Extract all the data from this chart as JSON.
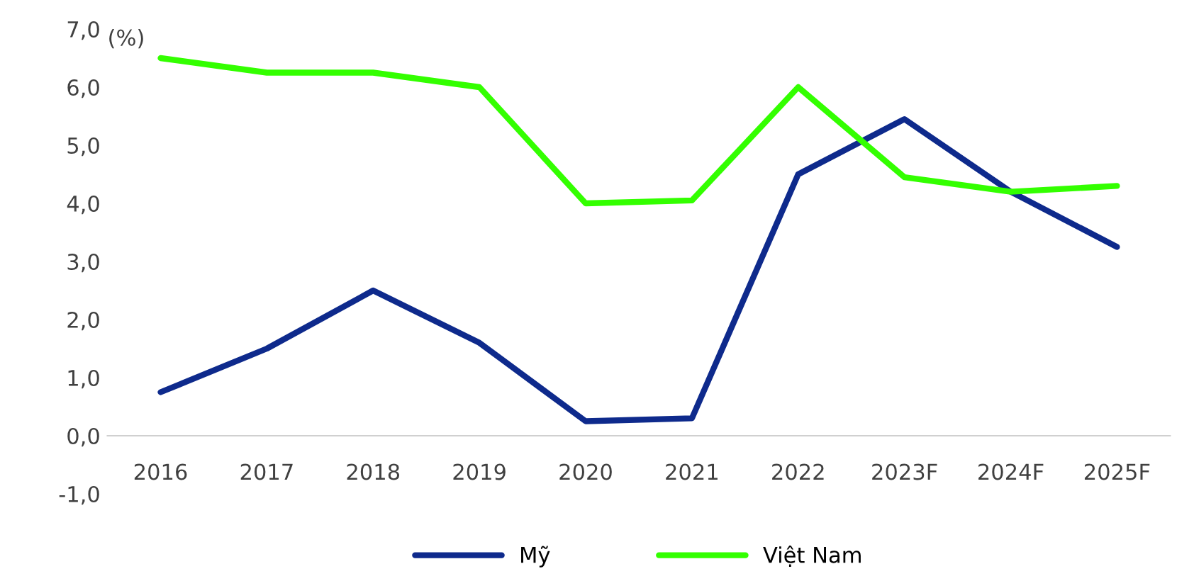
{
  "chart_data": {
    "type": "line",
    "ylabel": "(%)",
    "categories": [
      "2016",
      "2017",
      "2018",
      "2019",
      "2020",
      "2021",
      "2022",
      "2023F",
      "2024F",
      "2025F"
    ],
    "series": [
      {
        "name": "Mỹ",
        "color": "#0e2a8c",
        "values": [
          0.75,
          1.5,
          2.5,
          1.6,
          0.25,
          0.3,
          4.5,
          5.45,
          4.2,
          3.25
        ]
      },
      {
        "name": "Việt Nam",
        "color": "#33ff00",
        "values": [
          6.5,
          6.25,
          6.25,
          6.0,
          4.0,
          4.05,
          6.0,
          4.45,
          4.2,
          4.3
        ]
      }
    ],
    "ylim": [
      -1,
      7
    ],
    "yticks": [
      {
        "value": -1,
        "label": "-1,0"
      },
      {
        "value": 0,
        "label": "0,0"
      },
      {
        "value": 1,
        "label": "1,0"
      },
      {
        "value": 2,
        "label": "2,0"
      },
      {
        "value": 3,
        "label": "3,0"
      },
      {
        "value": 4,
        "label": "4,0"
      },
      {
        "value": 5,
        "label": "5,0"
      },
      {
        "value": 6,
        "label": "6,0"
      },
      {
        "value": 7,
        "label": "7,0"
      }
    ],
    "grid": false,
    "legend": "bottom",
    "marker": "none",
    "line_style": "solid"
  }
}
